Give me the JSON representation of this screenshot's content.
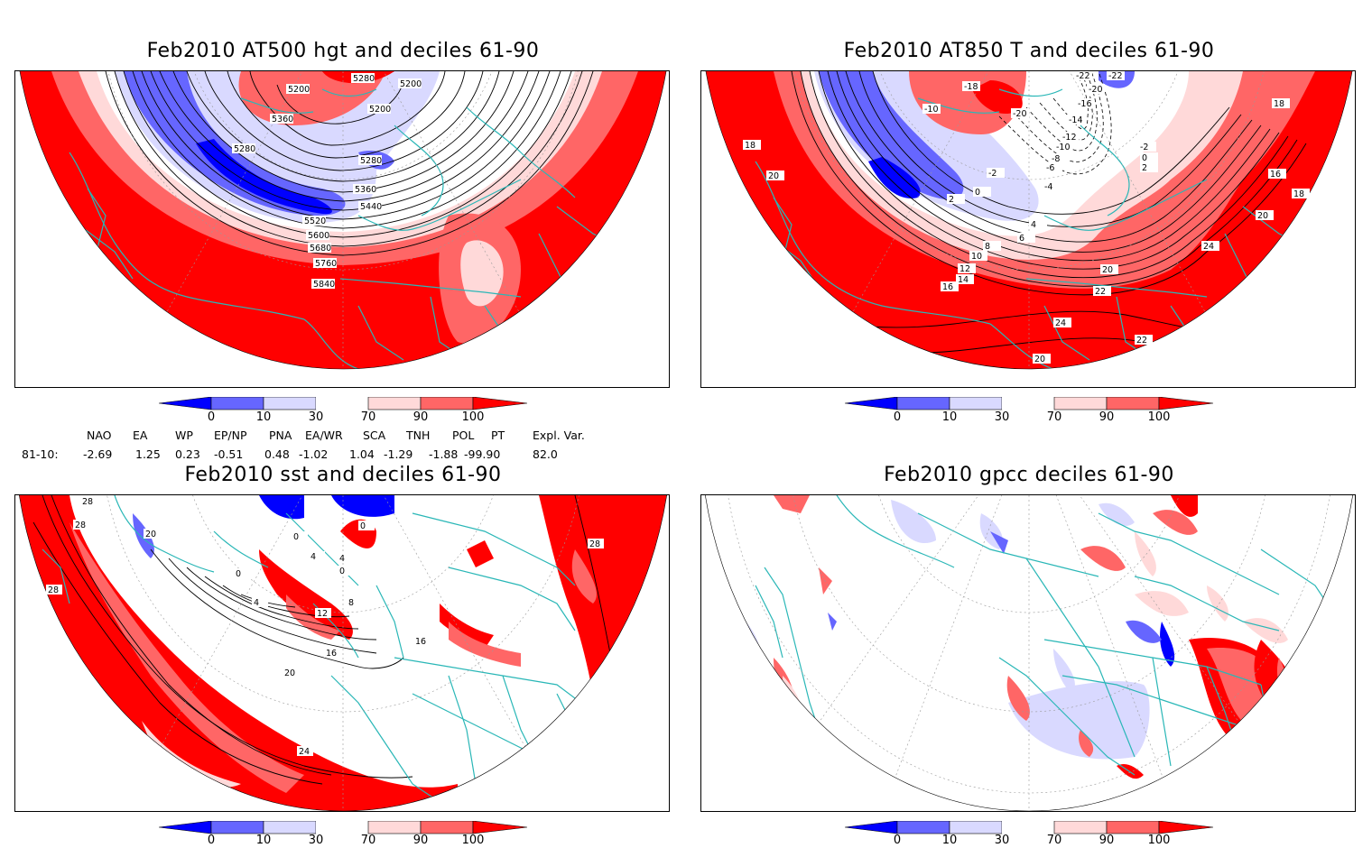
{
  "panels": [
    {
      "id": "top-left",
      "title": "Feb2010 AT500 hgt and deciles 61-90",
      "contour_labels": [
        "5200",
        "5200",
        "5200",
        "5280",
        "5280",
        "5280",
        "5360",
        "5360",
        "5440",
        "5520",
        "5600",
        "5680",
        "5760",
        "5840"
      ]
    },
    {
      "id": "top-right",
      "title": "Feb2010 AT850 T and deciles 61-90",
      "contour_labels": [
        "-22",
        "-22",
        "-20",
        "-20",
        "-18",
        "-16",
        "-14",
        "-12",
        "-10",
        "-10",
        "-8",
        "-6",
        "-4",
        "-2",
        "-2",
        "0",
        "0",
        "2",
        "2",
        "4",
        "6",
        "8",
        "10",
        "12",
        "14",
        "16",
        "16",
        "18",
        "18",
        "18",
        "20",
        "20",
        "20",
        "20",
        "22",
        "22",
        "24",
        "24"
      ]
    },
    {
      "id": "bottom-left",
      "title": "Feb2010 sst and deciles 61-90",
      "contour_labels": [
        "28",
        "28",
        "28",
        "28",
        "24",
        "20",
        "20",
        "16",
        "16",
        "12",
        "8",
        "4",
        "4",
        "4",
        "0",
        "0",
        "0",
        "0"
      ]
    },
    {
      "id": "bottom-right",
      "title": "Feb2010 gpcc deciles 61-90",
      "contour_labels": []
    }
  ],
  "colorbar": {
    "tick_labels": [
      "0",
      "10",
      "30",
      "70",
      "90",
      "100"
    ],
    "colors": [
      "#0000ff",
      "#6666ff",
      "#d9d9ff",
      "#ffffff",
      "#ffd9d9",
      "#ff6666",
      "#ff0000"
    ]
  },
  "teleconnections": {
    "headers": [
      "NAO",
      "EA",
      "WP",
      "EP/NP",
      "PNA",
      "EA/WR",
      "SCA",
      "TNH",
      "POL",
      "PT",
      "Expl. Var."
    ],
    "row_label": "81-10:",
    "values": [
      "-2.69",
      "1.25",
      "0.23",
      "-0.51",
      "0.48",
      "-1.02",
      "1.04",
      "-1.29",
      "-1.88",
      "-99.90",
      "82.0"
    ]
  },
  "colors": {
    "coastline": "#2ab7b7",
    "deep_red": "#ff0000",
    "mid_red": "#ff6666",
    "light_red": "#ffd9d9",
    "deep_blue": "#0000ff",
    "mid_blue": "#6666ff",
    "light_blue": "#d9d9ff"
  }
}
